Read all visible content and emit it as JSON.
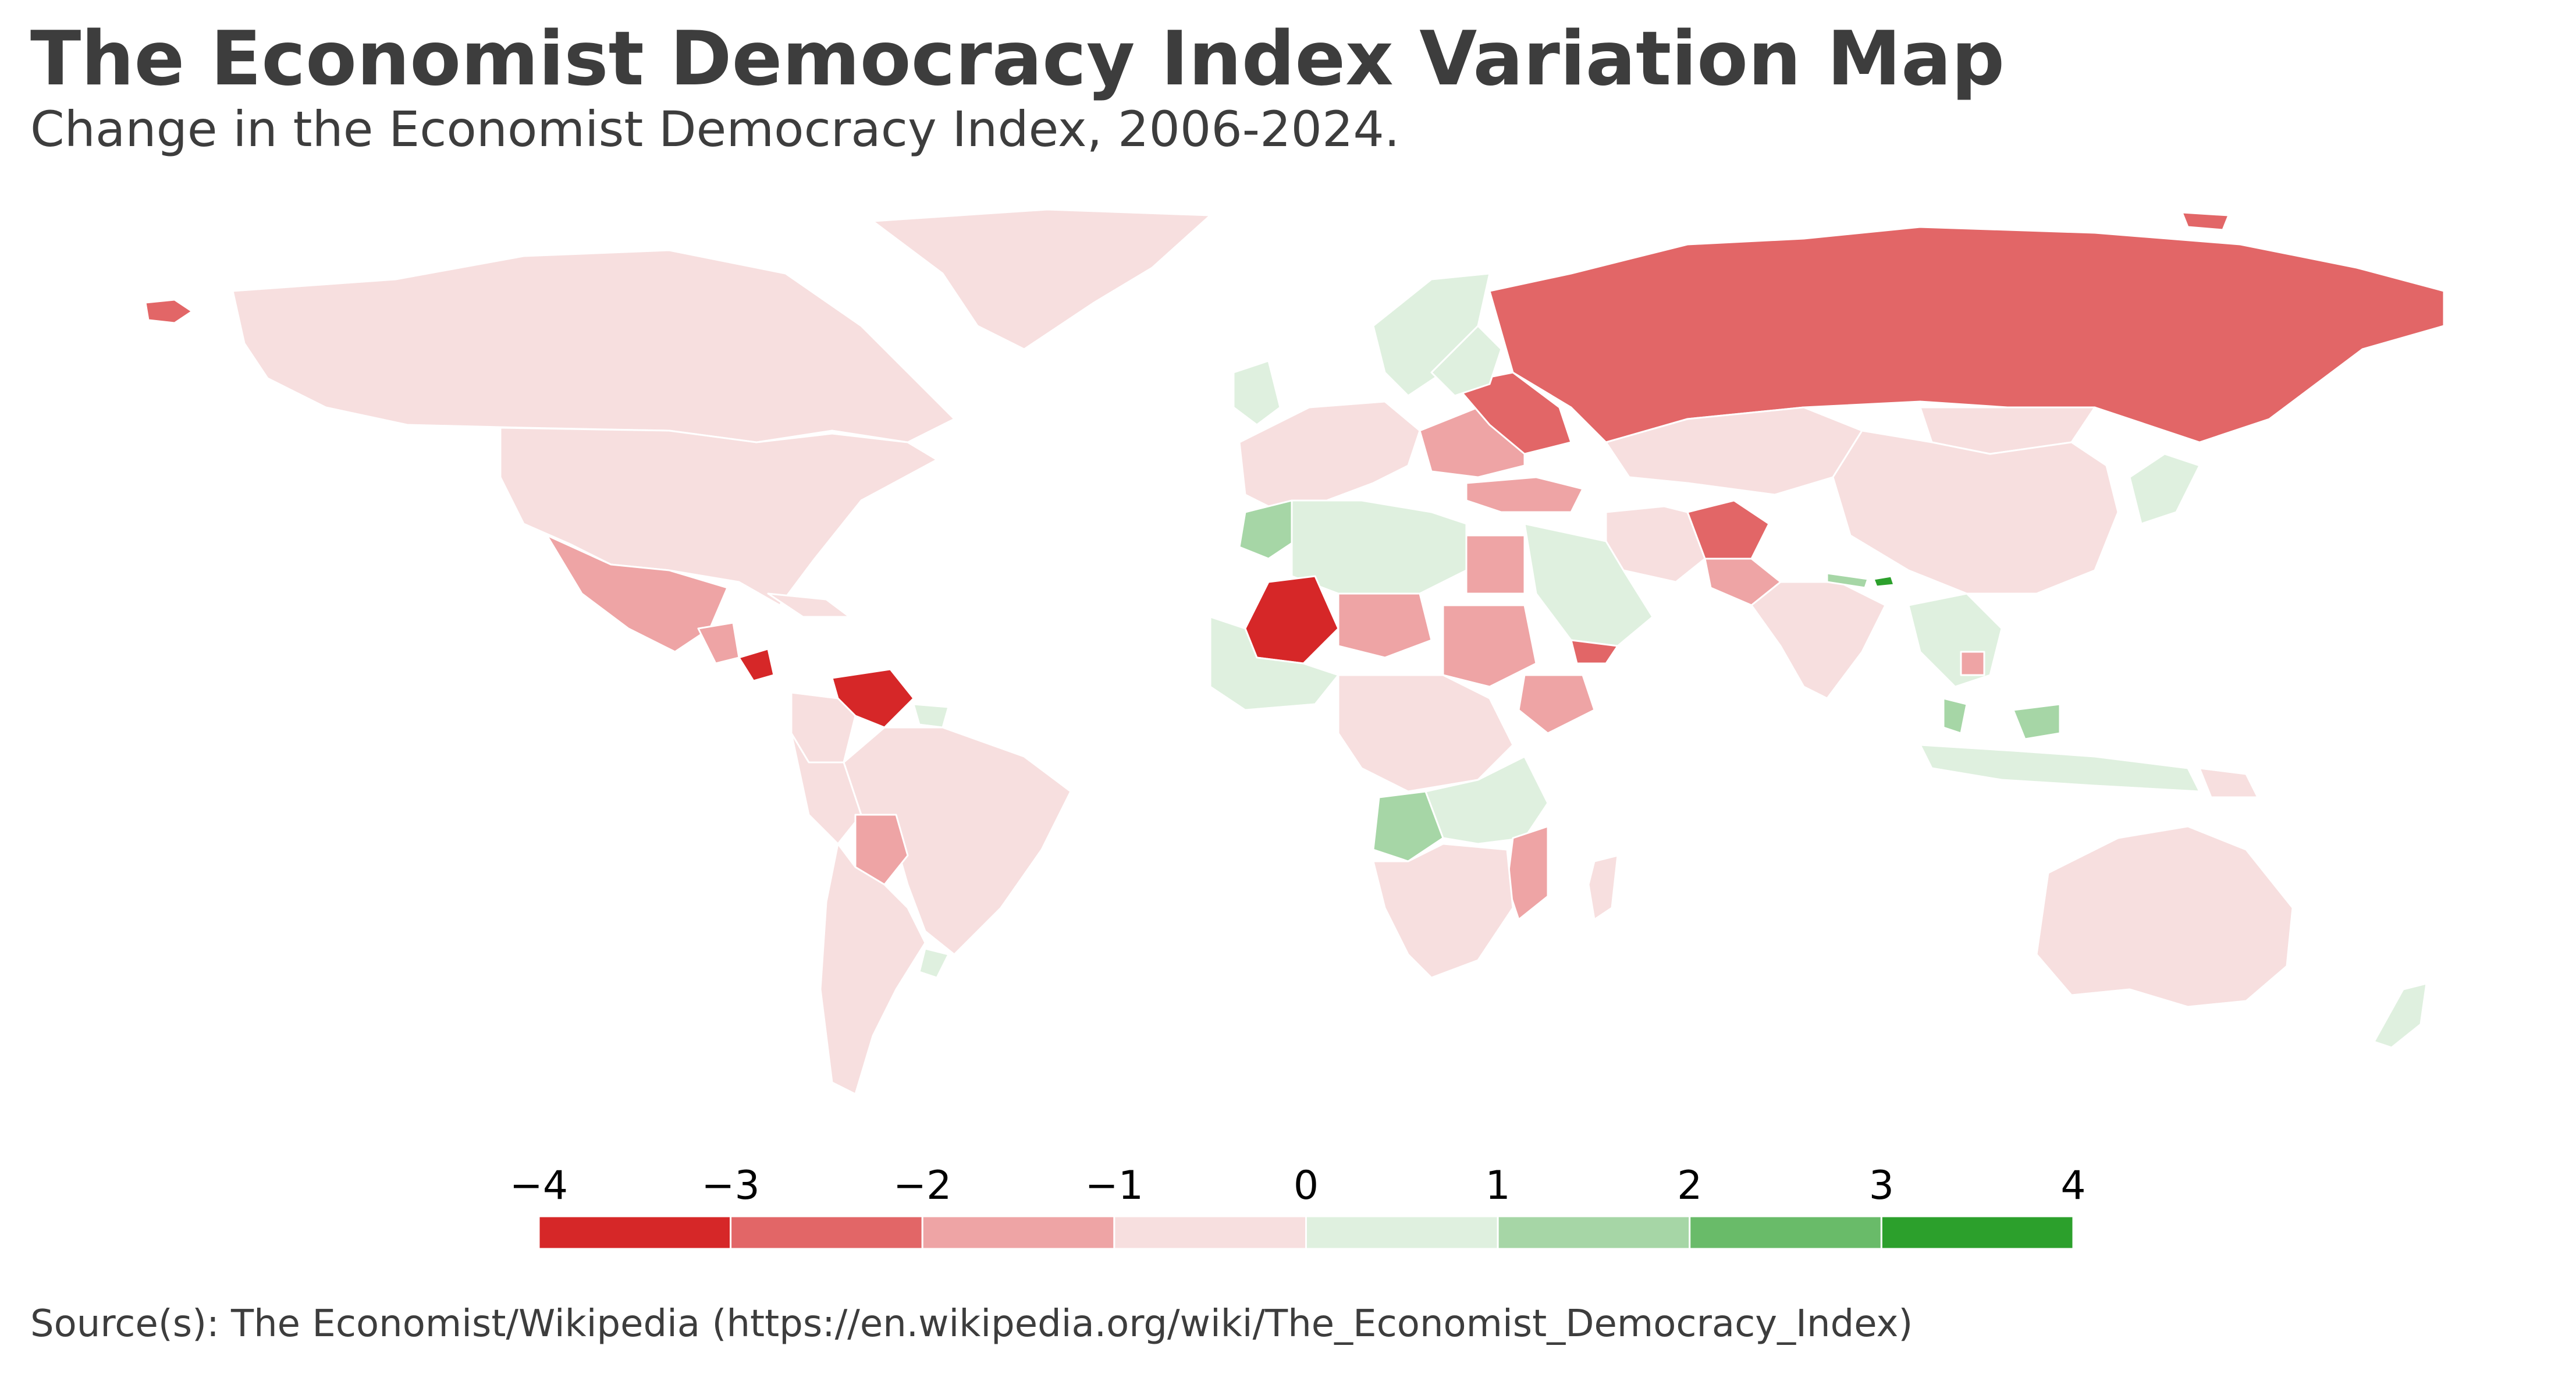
{
  "header": {
    "title": "The Economist Democracy Index Variation Map",
    "subtitle": "Change in the Economist Democracy Index, 2006-2024."
  },
  "legend": {
    "ticks": [
      "−4",
      "−3",
      "−2",
      "−1",
      "0",
      "1",
      "2",
      "3",
      "4"
    ],
    "bins": [
      {
        "range": [
          -4,
          -3
        ],
        "color": "#d62728"
      },
      {
        "range": [
          -3,
          -2
        ],
        "color": "#e26667"
      },
      {
        "range": [
          -2,
          -1
        ],
        "color": "#eea4a5"
      },
      {
        "range": [
          -1,
          0
        ],
        "color": "#f7dfdf"
      },
      {
        "range": [
          0,
          1
        ],
        "color": "#dff0df"
      },
      {
        "range": [
          1,
          2
        ],
        "color": "#a6d6a6"
      },
      {
        "range": [
          2,
          3
        ],
        "color": "#69bb69"
      },
      {
        "range": [
          3,
          4
        ],
        "color": "#2ca02c"
      }
    ]
  },
  "map": {
    "colors": {
      "c1": "#d62728",
      "c2": "#e26667",
      "c3": "#eea4a5",
      "c4": "#f7dfdf",
      "c5": "#dff0df",
      "c6": "#a6d6a6",
      "c7": "#69bb69",
      "c8": "#2ca02c",
      "border": "#ffffff"
    }
  },
  "footer": {
    "source": "Source(s): The Economist/Wikipedia (https://en.wikipedia.org/wiki/The_Economist_Democracy_Index)"
  }
}
